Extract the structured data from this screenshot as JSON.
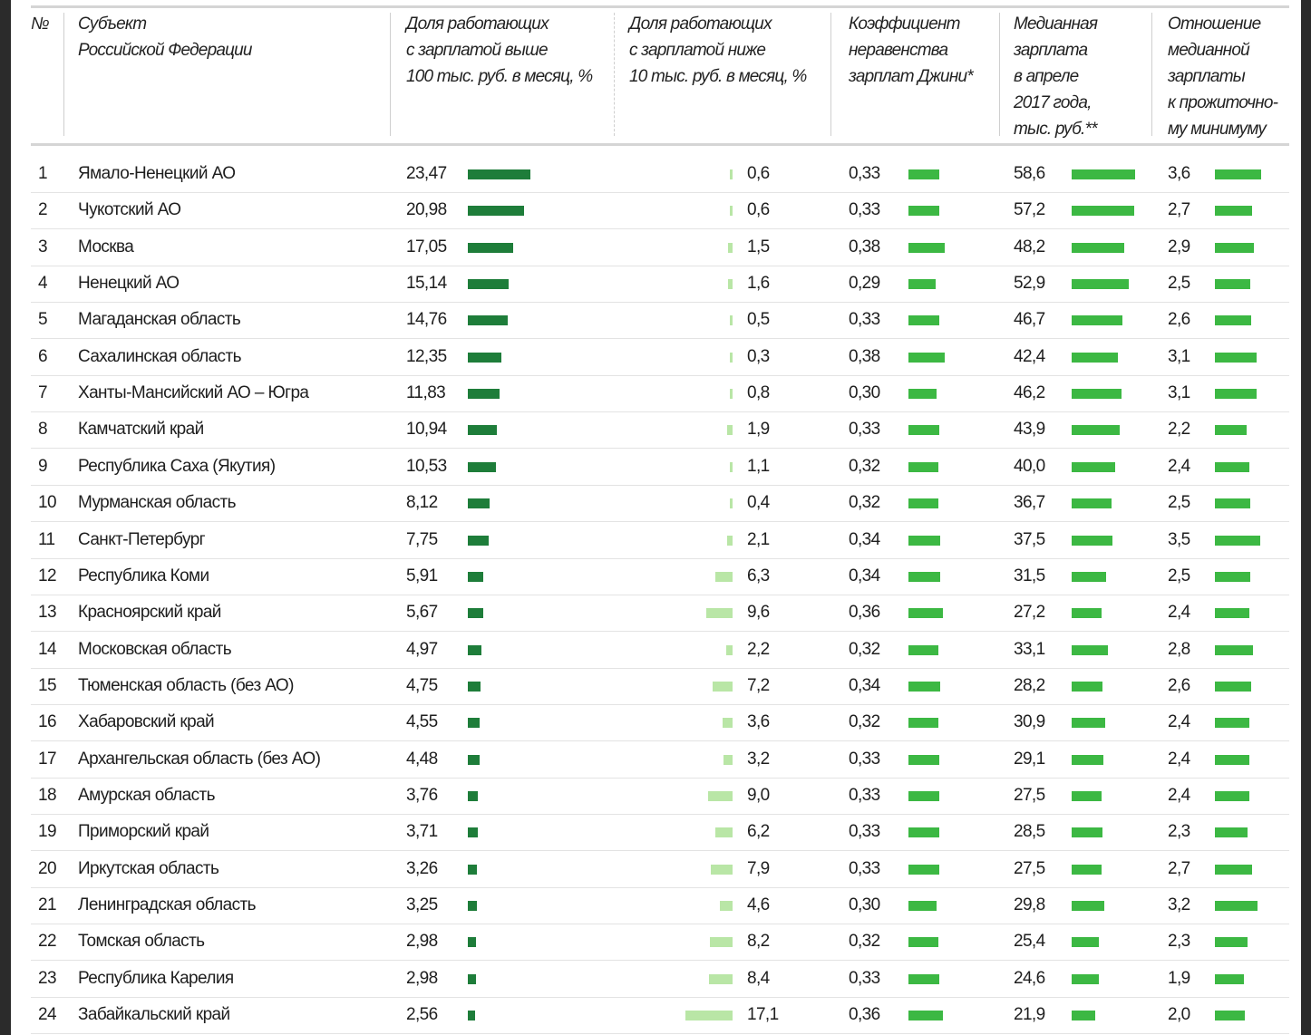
{
  "headers": {
    "num": "№",
    "region": "Субъект\nРоссийской Федерации",
    "high": "Доля работающих\nс зарплатой выше\n100 тыс. руб. в месяц, %",
    "low": "Доля работающих\nс зарплатой ниже\n10 тыс. руб. в месяц, %",
    "gini": "Коэффициент\nнеравенства\nзарплат Джини*",
    "median": "Медианная\nзарплата\nв апреле\n2017 года,\nтыс. руб.**",
    "ratio": "Отношение\nмедианной\nзарплаты\nк прожиточно-\nму минимуму"
  },
  "colors": {
    "high_bar": "#1e7d3a",
    "low_bar": "#b9e6a6",
    "other_bar": "#3cb843"
  },
  "chart_data": {
    "type": "table",
    "columns": [
      "num",
      "region",
      "high",
      "low",
      "gini",
      "median",
      "ratio"
    ],
    "rows": [
      {
        "num": "1",
        "region": "Ямало-Ненецкий АО",
        "high": "23,47",
        "low": "0,6",
        "gini": "0,33",
        "median": "58,6",
        "ratio": "3,6"
      },
      {
        "num": "2",
        "region": "Чукотский АО",
        "high": "20,98",
        "low": "0,6",
        "gini": "0,33",
        "median": "57,2",
        "ratio": "2,7"
      },
      {
        "num": "3",
        "region": "Москва",
        "high": "17,05",
        "low": "1,5",
        "gini": "0,38",
        "median": "48,2",
        "ratio": "2,9"
      },
      {
        "num": "4",
        "region": "Ненецкий АО",
        "high": "15,14",
        "low": "1,6",
        "gini": "0,29",
        "median": "52,9",
        "ratio": "2,5"
      },
      {
        "num": "5",
        "region": "Магаданская область",
        "high": "14,76",
        "low": "0,5",
        "gini": "0,33",
        "median": "46,7",
        "ratio": "2,6"
      },
      {
        "num": "6",
        "region": "Сахалинская область",
        "high": "12,35",
        "low": "0,3",
        "gini": "0,38",
        "median": "42,4",
        "ratio": "3,1"
      },
      {
        "num": "7",
        "region": "Ханты-Мансийский АО – Югра",
        "high": "11,83",
        "low": "0,8",
        "gini": "0,30",
        "median": "46,2",
        "ratio": "3,1"
      },
      {
        "num": "8",
        "region": "Камчатский край",
        "high": "10,94",
        "low": "1,9",
        "gini": "0,33",
        "median": "43,9",
        "ratio": "2,2"
      },
      {
        "num": "9",
        "region": "Республика Саха (Якутия)",
        "high": "10,53",
        "low": "1,1",
        "gini": "0,32",
        "median": "40,0",
        "ratio": "2,4"
      },
      {
        "num": "10",
        "region": "Мурманская область",
        "high": "8,12",
        "low": "0,4",
        "gini": "0,32",
        "median": "36,7",
        "ratio": "2,5"
      },
      {
        "num": "11",
        "region": "Санкт-Петербург",
        "high": "7,75",
        "low": "2,1",
        "gini": "0,34",
        "median": "37,5",
        "ratio": "3,5"
      },
      {
        "num": "12",
        "region": "Республика Коми",
        "high": "5,91",
        "low": "6,3",
        "gini": "0,34",
        "median": "31,5",
        "ratio": "2,5"
      },
      {
        "num": "13",
        "region": "Красноярский край",
        "high": "5,67",
        "low": "9,6",
        "gini": "0,36",
        "median": "27,2",
        "ratio": "2,4"
      },
      {
        "num": "14",
        "region": "Московская область",
        "high": "4,97",
        "low": "2,2",
        "gini": "0,32",
        "median": "33,1",
        "ratio": "2,8"
      },
      {
        "num": "15",
        "region": "Тюменская область (без АО)",
        "high": "4,75",
        "low": "7,2",
        "gini": "0,34",
        "median": "28,2",
        "ratio": "2,6"
      },
      {
        "num": "16",
        "region": "Хабаровский край",
        "high": "4,55",
        "low": "3,6",
        "gini": "0,32",
        "median": "30,9",
        "ratio": "2,4"
      },
      {
        "num": "17",
        "region": "Архангельская область (без АО)",
        "high": "4,48",
        "low": "3,2",
        "gini": "0,33",
        "median": "29,1",
        "ratio": "2,4"
      },
      {
        "num": "18",
        "region": "Амурская область",
        "high": "3,76",
        "low": "9,0",
        "gini": "0,33",
        "median": "27,5",
        "ratio": "2,4"
      },
      {
        "num": "19",
        "region": "Приморский край",
        "high": "3,71",
        "low": "6,2",
        "gini": "0,33",
        "median": "28,5",
        "ratio": "2,3"
      },
      {
        "num": "20",
        "region": "Иркутская область",
        "high": "3,26",
        "low": "7,9",
        "gini": "0,33",
        "median": "27,5",
        "ratio": "2,7"
      },
      {
        "num": "21",
        "region": "Ленинградская область",
        "high": "3,25",
        "low": "4,6",
        "gini": "0,30",
        "median": "29,8",
        "ratio": "3,2"
      },
      {
        "num": "22",
        "region": "Томская область",
        "high": "2,98",
        "low": "8,2",
        "gini": "0,32",
        "median": "25,4",
        "ratio": "2,3"
      },
      {
        "num": "23",
        "region": "Республика Карелия",
        "high": "2,98",
        "low": "8,4",
        "gini": "0,33",
        "median": "24,6",
        "ratio": "1,9"
      },
      {
        "num": "24",
        "region": "Забайкальский край",
        "high": "2,56",
        "low": "17,1",
        "gini": "0,36",
        "median": "21,9",
        "ratio": "2,0"
      }
    ]
  }
}
